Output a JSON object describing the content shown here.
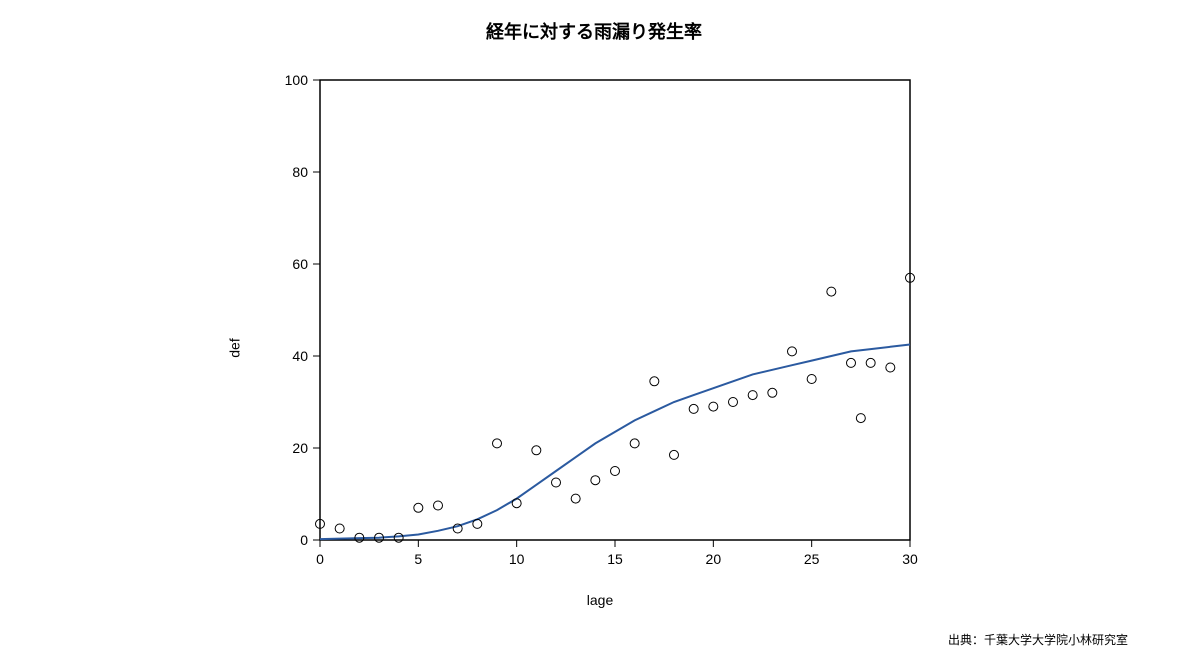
{
  "chart": {
    "type": "scatter_with_curve",
    "title": "経年に対する雨漏り発生率",
    "xlabel": "lage",
    "ylabel": "def",
    "attribution": "出典：千葉大学大学院小林研究室",
    "background_color": "#ffffff",
    "frame_color": "#000000",
    "frame_width": 1.5,
    "xlim": [
      0,
      30
    ],
    "ylim": [
      0,
      100
    ],
    "xticks": [
      0,
      5,
      10,
      15,
      20,
      25,
      30
    ],
    "yticks": [
      0,
      20,
      40,
      60,
      80,
      100
    ],
    "tick_fontsize": 14,
    "label_fontsize": 14,
    "title_fontsize": 18,
    "scatter": {
      "points": [
        {
          "x": 0,
          "y": 3.5
        },
        {
          "x": 1,
          "y": 2.5
        },
        {
          "x": 2,
          "y": 0.5
        },
        {
          "x": 3,
          "y": 0.5
        },
        {
          "x": 4,
          "y": 0.5
        },
        {
          "x": 5,
          "y": 7
        },
        {
          "x": 6,
          "y": 7.5
        },
        {
          "x": 7,
          "y": 2.5
        },
        {
          "x": 8,
          "y": 3.5
        },
        {
          "x": 9,
          "y": 21
        },
        {
          "x": 10,
          "y": 8
        },
        {
          "x": 11,
          "y": 19.5
        },
        {
          "x": 12,
          "y": 12.5
        },
        {
          "x": 13,
          "y": 9
        },
        {
          "x": 14,
          "y": 13
        },
        {
          "x": 15,
          "y": 15
        },
        {
          "x": 16,
          "y": 21
        },
        {
          "x": 17,
          "y": 34.5
        },
        {
          "x": 18,
          "y": 18.5
        },
        {
          "x": 19,
          "y": 28.5
        },
        {
          "x": 20,
          "y": 29
        },
        {
          "x": 21,
          "y": 30
        },
        {
          "x": 22,
          "y": 31.5
        },
        {
          "x": 23,
          "y": 32
        },
        {
          "x": 24,
          "y": 41
        },
        {
          "x": 25,
          "y": 35
        },
        {
          "x": 26,
          "y": 54
        },
        {
          "x": 27,
          "y": 38.5
        },
        {
          "x": 27.5,
          "y": 26.5
        },
        {
          "x": 28,
          "y": 38.5
        },
        {
          "x": 29,
          "y": 37.5
        },
        {
          "x": 30,
          "y": 57
        }
      ],
      "marker_radius": 4.5,
      "marker_fill": "none",
      "marker_stroke": "#000000",
      "marker_stroke_width": 1
    },
    "curve": {
      "color": "#2b5aa0",
      "width": 2,
      "points": [
        {
          "x": 0,
          "y": 0.2
        },
        {
          "x": 1,
          "y": 0.3
        },
        {
          "x": 2,
          "y": 0.4
        },
        {
          "x": 3,
          "y": 0.5
        },
        {
          "x": 4,
          "y": 0.8
        },
        {
          "x": 5,
          "y": 1.2
        },
        {
          "x": 6,
          "y": 2
        },
        {
          "x": 7,
          "y": 3
        },
        {
          "x": 8,
          "y": 4.5
        },
        {
          "x": 9,
          "y": 6.5
        },
        {
          "x": 10,
          "y": 9
        },
        {
          "x": 11,
          "y": 12
        },
        {
          "x": 12,
          "y": 15
        },
        {
          "x": 13,
          "y": 18
        },
        {
          "x": 14,
          "y": 21
        },
        {
          "x": 15,
          "y": 23.5
        },
        {
          "x": 16,
          "y": 26
        },
        {
          "x": 17,
          "y": 28
        },
        {
          "x": 18,
          "y": 30
        },
        {
          "x": 19,
          "y": 31.5
        },
        {
          "x": 20,
          "y": 33
        },
        {
          "x": 21,
          "y": 34.5
        },
        {
          "x": 22,
          "y": 36
        },
        {
          "x": 23,
          "y": 37
        },
        {
          "x": 24,
          "y": 38
        },
        {
          "x": 25,
          "y": 39
        },
        {
          "x": 26,
          "y": 40
        },
        {
          "x": 27,
          "y": 41
        },
        {
          "x": 28,
          "y": 41.5
        },
        {
          "x": 29,
          "y": 42
        },
        {
          "x": 30,
          "y": 42.5
        }
      ]
    }
  }
}
